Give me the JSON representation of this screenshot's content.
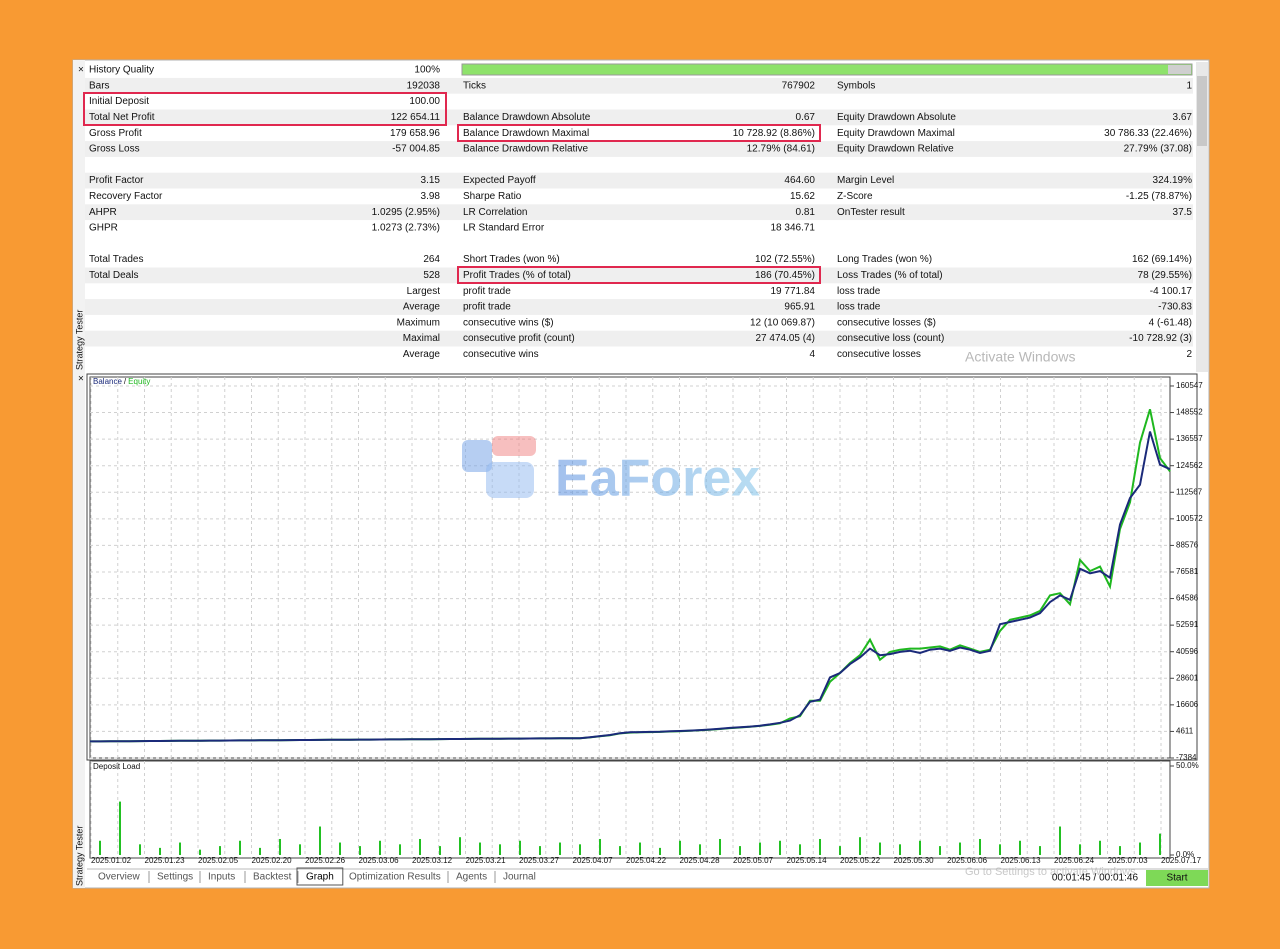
{
  "sidebar_label": "Strategy Tester",
  "close_icon": "×",
  "report": {
    "sections": [
      [
        [
          "History Quality",
          "100%"
        ],
        [
          "Bars",
          "192038",
          "Ticks",
          "767902",
          "Symbols",
          "1"
        ],
        [
          "Initial Deposit",
          "100.00",
          null,
          null,
          null,
          null
        ],
        [
          "Total Net Profit",
          "122 654.11",
          "Balance Drawdown Absolute",
          "0.67",
          "Equity Drawdown Absolute",
          "3.67"
        ],
        [
          "Gross Profit",
          "179 658.96",
          "Balance Drawdown Maximal",
          "10 728.92 (8.86%)",
          "Equity Drawdown Maximal",
          "30 786.33 (22.46%)"
        ],
        [
          "Gross Loss",
          "-57 004.85",
          "Balance Drawdown Relative",
          "12.79% (84.61)",
          "Equity Drawdown Relative",
          "27.79% (37.08)"
        ]
      ],
      [
        [
          "Profit Factor",
          "3.15",
          "Expected Payoff",
          "464.60",
          "Margin Level",
          "324.19%"
        ],
        [
          "Recovery Factor",
          "3.98",
          "Sharpe Ratio",
          "15.62",
          "Z-Score",
          "-1.25 (78.87%)"
        ],
        [
          "AHPR",
          "1.0295 (2.95%)",
          "LR Correlation",
          "0.81",
          "OnTester result",
          "37.5"
        ],
        [
          "GHPR",
          "1.0273 (2.73%)",
          "LR Standard Error",
          "18 346.71",
          null,
          null
        ]
      ],
      [
        [
          "Total Trades",
          "264",
          "Short Trades (won %)",
          "102 (72.55%)",
          "Long Trades (won %)",
          "162 (69.14%)"
        ],
        [
          "Total Deals",
          "528",
          "Profit Trades (% of total)",
          "186 (70.45%)",
          "Loss Trades (% of total)",
          "78 (29.55%)"
        ],
        [
          null,
          "Largest",
          "profit trade",
          "19 771.84",
          "loss trade",
          "-4 100.17"
        ],
        [
          null,
          "Average",
          "profit trade",
          "965.91",
          "loss trade",
          "-730.83"
        ],
        [
          null,
          "Maximum",
          "consecutive wins ($)",
          "12 (10 069.87)",
          "consecutive losses ($)",
          "4 (-61.48)"
        ],
        [
          null,
          "Maximal",
          "consecutive profit (count)",
          "27 474.05 (4)",
          "consecutive loss (count)",
          "-10 728.92 (3)"
        ],
        [
          null,
          "Average",
          "consecutive wins",
          "4",
          "consecutive losses",
          "2"
        ]
      ]
    ]
  },
  "chart_data": [
    {
      "type": "line",
      "legend_separator": "/",
      "watermark": "EaForex",
      "ylim": [
        -7384,
        164600
      ],
      "yticks": [
        160547,
        148552,
        136557,
        124562,
        112567,
        100572,
        88576,
        76581,
        64586,
        52591,
        40596,
        28601,
        16606,
        4611,
        -7384
      ],
      "grid": true,
      "series": [
        {
          "name": "Equity",
          "color": "#1fb81f",
          "values": [
            100,
            130,
            160,
            190,
            220,
            250,
            280,
            310,
            340,
            370,
            400,
            430,
            460,
            490,
            520,
            550,
            580,
            610,
            640,
            670,
            700,
            730,
            760,
            790,
            820,
            850,
            880,
            910,
            940,
            970,
            1000,
            1030,
            1060,
            1090,
            1120,
            1150,
            1180,
            1210,
            1240,
            1270,
            1300,
            1330,
            1360,
            1390,
            1420,
            1450,
            1480,
            1510,
            1540,
            1570,
            1900,
            2400,
            2900,
            3700,
            4100,
            4200,
            4300,
            4400,
            4600,
            4700,
            4900,
            5100,
            5400,
            5700,
            6100,
            6400,
            6700,
            7100,
            7600,
            8300,
            10500,
            11500,
            18500,
            18500,
            27000,
            31000,
            35500,
            39000,
            46000,
            37000,
            40500,
            41500,
            42000,
            42000,
            42500,
            43000,
            41500,
            43500,
            42000,
            40500,
            41500,
            50000,
            55000,
            56000,
            57000,
            59000,
            66000,
            67000,
            62000,
            82000,
            77000,
            79000,
            70000,
            96000,
            108000,
            135000,
            150000,
            128000,
            122000
          ]
        },
        {
          "name": "Balance",
          "color": "#1b2a7a",
          "values": [
            100,
            130,
            160,
            190,
            220,
            250,
            280,
            310,
            340,
            370,
            400,
            430,
            460,
            490,
            520,
            550,
            580,
            610,
            640,
            670,
            700,
            730,
            760,
            790,
            820,
            850,
            880,
            910,
            940,
            970,
            1000,
            1030,
            1060,
            1090,
            1120,
            1150,
            1180,
            1210,
            1240,
            1270,
            1300,
            1330,
            1360,
            1390,
            1420,
            1450,
            1480,
            1510,
            1540,
            1570,
            2000,
            2500,
            3000,
            3800,
            4200,
            4300,
            4400,
            4500,
            4700,
            4800,
            5000,
            5200,
            5500,
            5800,
            6200,
            6500,
            6800,
            7200,
            7800,
            8500,
            9500,
            12000,
            18000,
            19000,
            29000,
            31000,
            35000,
            38000,
            42000,
            39000,
            39500,
            40500,
            41000,
            40000,
            41500,
            42000,
            41000,
            42500,
            41500,
            40000,
            41000,
            53000,
            54000,
            55000,
            56000,
            58000,
            63000,
            66000,
            64000,
            78000,
            76000,
            77000,
            74000,
            98000,
            110000,
            116000,
            140000,
            125000,
            123000
          ]
        }
      ]
    },
    {
      "type": "bar",
      "title": "Deposit Load",
      "color": "#22c022",
      "ylim": [
        0,
        50
      ],
      "yticks": [
        {
          "value": 50,
          "label": "50.0%"
        },
        {
          "value": 0,
          "label": "0.0%"
        }
      ],
      "values": [
        8,
        30,
        6,
        4,
        7,
        3,
        5,
        8,
        4,
        9,
        6,
        16,
        7,
        5,
        8,
        6,
        9,
        5,
        10,
        7,
        6,
        8,
        5,
        7,
        6,
        9,
        5,
        7,
        4,
        8,
        6,
        9,
        5,
        7,
        8,
        6,
        9,
        5,
        10,
        7,
        6,
        8,
        5,
        7,
        9,
        6,
        8,
        5,
        16,
        6,
        8,
        5,
        7,
        12
      ],
      "x_labels": [
        "2025.01.02",
        "2025.01.23",
        "2025.02.05",
        "2025.02.20",
        "2025.02.26",
        "2025.03.06",
        "2025.03.12",
        "2025.03.21",
        "2025.03.27",
        "2025.04.07",
        "2025.04.22",
        "2025.04.28",
        "2025.05.07",
        "2025.05.14",
        "2025.05.22",
        "2025.05.30",
        "2025.06.06",
        "2025.06.13",
        "2025.06.24",
        "2025.07.03",
        "2025.07.17"
      ]
    }
  ],
  "tabs": [
    "Overview",
    "Settings",
    "Inputs",
    "Backtest",
    "Graph",
    "Optimization Results",
    "Agents",
    "Journal"
  ],
  "active_tab": 4,
  "status": {
    "time": "00:01:45 / 00:01:46",
    "button": "Start"
  },
  "os_watermark": [
    "Activate Windows",
    "Go to Settings to activate Windows"
  ]
}
